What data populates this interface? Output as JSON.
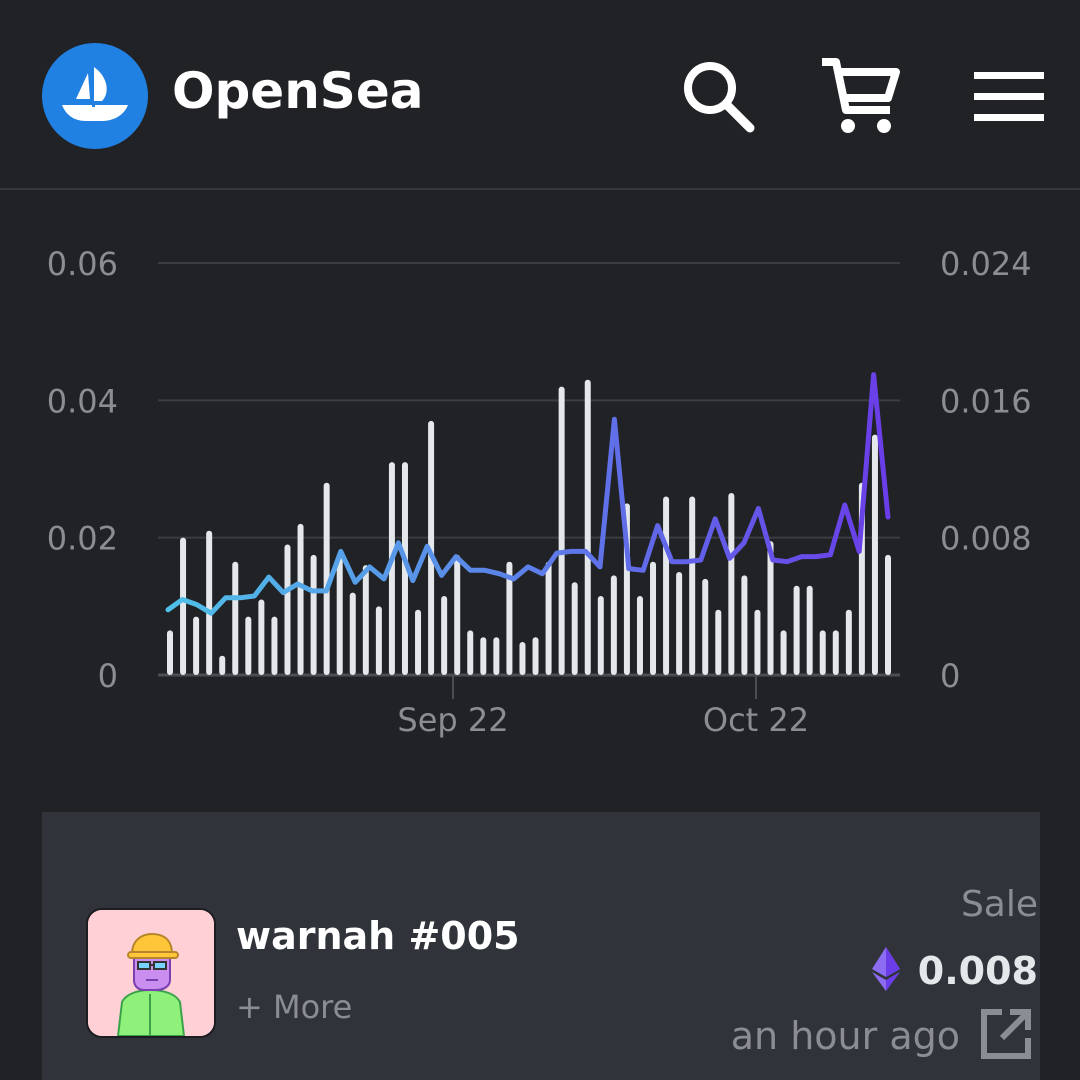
{
  "header": {
    "brand": "OpenSea",
    "icons": {
      "logo": "opensea-logo-icon",
      "search": "search-icon",
      "cart": "cart-icon",
      "menu": "hamburger-menu-icon"
    }
  },
  "colors": {
    "background": "#202225",
    "brand_blue": "#2081e2",
    "line_start": "#4fc1e8",
    "line_end": "#6a3de8",
    "bars": "#e5e8eb",
    "muted_text": "#8a8d91",
    "card_bg": "#303339"
  },
  "chart_data": {
    "type": "bar+line",
    "left_axis": {
      "ticks": [
        "0",
        "0.02",
        "0.04",
        "0.06"
      ],
      "range": [
        0,
        0.06
      ]
    },
    "right_axis": {
      "ticks": [
        "0",
        "0.008",
        "0.016",
        "0.024"
      ],
      "range": [
        0,
        0.024
      ]
    },
    "x_ticks": [
      "Sep 22",
      "Oct 22"
    ],
    "grid": true,
    "bars_series": {
      "name": "",
      "values": [
        0.0065,
        0.02,
        0.0085,
        0.021,
        0.0028,
        0.0165,
        0.0085,
        0.011,
        0.0085,
        0.019,
        0.022,
        0.0175,
        0.028,
        0.0175,
        0.012,
        0.016,
        0.01,
        0.031,
        0.031,
        0.0095,
        0.037,
        0.0115,
        0.0175,
        0.0065,
        0.0055,
        0.0055,
        0.0165,
        0.0048,
        0.0055,
        0.0165,
        0.042,
        0.0135,
        0.043,
        0.0115,
        0.0145,
        0.025,
        0.0115,
        0.0165,
        0.026,
        0.015,
        0.026,
        0.014,
        0.0095,
        0.0265,
        0.0145,
        0.0095,
        0.0195,
        0.0065,
        0.013,
        0.013,
        0.0065,
        0.0065,
        0.0095,
        0.028,
        0.035,
        0.0175
      ]
    },
    "line_series": {
      "name": "",
      "values": [
        0.0038,
        0.0044,
        0.0041,
        0.0036,
        0.0045,
        0.0045,
        0.0046,
        0.0057,
        0.0048,
        0.0053,
        0.0049,
        0.0049,
        0.0072,
        0.0054,
        0.0063,
        0.0056,
        0.0077,
        0.0055,
        0.0075,
        0.0058,
        0.0069,
        0.0061,
        0.0061,
        0.0059,
        0.0056,
        0.0063,
        0.0059,
        0.0071,
        0.0072,
        0.0072,
        0.0063,
        0.0149,
        0.0062,
        0.0061,
        0.0087,
        0.0066,
        0.0066,
        0.0067,
        0.0091,
        0.0068,
        0.0077,
        0.0097,
        0.0067,
        0.0066,
        0.0069,
        0.0069,
        0.007,
        0.0099,
        0.0072,
        0.0175,
        0.0092
      ]
    }
  },
  "activity": {
    "item_name": "warnah #005",
    "more_label": "+ More",
    "event_type": "Sale",
    "price": "0.008",
    "currency_icon": "ethereum-icon",
    "time_ago": "an hour ago",
    "link_icon": "external-link-icon"
  }
}
